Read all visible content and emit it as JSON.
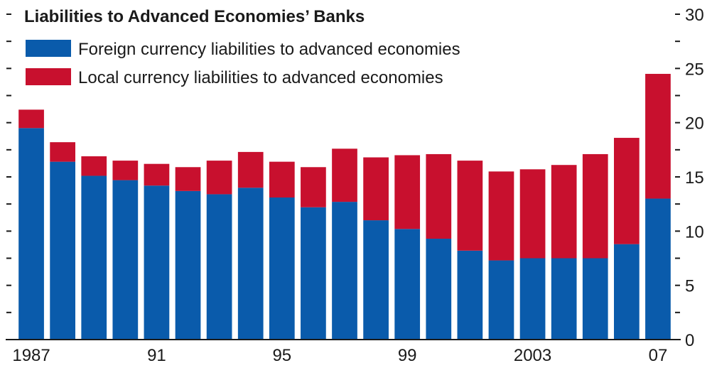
{
  "chart_data": {
    "type": "bar",
    "stacked": true,
    "title": "Liabilities to Advanced Economies’ Banks",
    "categories": [
      "1987",
      "1988",
      "1989",
      "1990",
      "1991",
      "1992",
      "1993",
      "1994",
      "1995",
      "1996",
      "1997",
      "1998",
      "1999",
      "2000",
      "2001",
      "2002",
      "2003",
      "2004",
      "2005",
      "2006",
      "2007"
    ],
    "x_tick_labels": [
      {
        "category": "1987",
        "label": "1987"
      },
      {
        "category": "1991",
        "label": "91"
      },
      {
        "category": "1995",
        "label": "95"
      },
      {
        "category": "1999",
        "label": "99"
      },
      {
        "category": "2003",
        "label": "2003"
      },
      {
        "category": "2007",
        "label": "07"
      }
    ],
    "series": [
      {
        "name": "Foreign currency liabilities to advanced economies",
        "color": "#0a5bab",
        "values": [
          19.5,
          16.4,
          15.1,
          14.7,
          14.2,
          13.7,
          13.4,
          14.0,
          13.1,
          12.2,
          12.7,
          11.0,
          10.2,
          9.3,
          8.2,
          7.3,
          7.5,
          7.5,
          7.5,
          8.8,
          13.0
        ]
      },
      {
        "name": "Local currency liabilities to advanced economies",
        "color": "#c8102e",
        "values": [
          1.7,
          1.8,
          1.8,
          1.8,
          2.0,
          2.2,
          3.1,
          3.3,
          3.3,
          3.7,
          4.9,
          5.8,
          6.8,
          7.8,
          8.3,
          8.2,
          8.2,
          8.6,
          9.6,
          9.8,
          11.5
        ]
      }
    ],
    "yticks": [
      0,
      5,
      10,
      15,
      20,
      25,
      30
    ],
    "ylim": [
      0,
      30
    ],
    "ylabel": "",
    "xlabel": "",
    "grid": false,
    "legend_position": "top-left"
  }
}
